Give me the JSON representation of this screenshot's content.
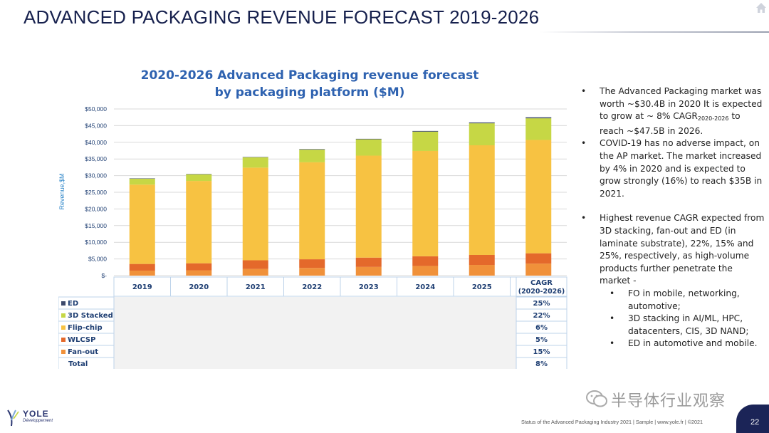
{
  "slide": {
    "title": "ADVANCED PACKAGING REVENUE FORECAST 2019-2026",
    "page_number": "22",
    "footer": "Status of the Advanced Packaging Industry 2021 | Sample | www.yole.fr | ©2021",
    "logo_name": "YOLE",
    "logo_sub": "Développement",
    "watermark": "半导体行业观察"
  },
  "bullets": {
    "b1_a": "The Advanced Packaging market was worth ~$30.4B in 2020 It is expected to  grow at ~ 8% CAGR",
    "b1_sub": "2020-2026",
    "b1_b": " to reach ~$47.5B in 2026.",
    "b2": "COVID-19 has no adverse impact, on the AP market. The market increased by 4% in 2020 and is expected to grow strongly (16%) to reach $35B in 2021.",
    "b3": "Highest revenue CAGR expected from 3D stacking,  fan-out and ED (in laminate substrate), 22%, 15% and 25%, respectively, as high-volume products further penetrate the market -",
    "s1": "FO in mobile, networking, automotive;",
    "s2": "3D stacking in AI/ML, HPC, datacenters, CIS, 3D NAND;",
    "s3": "ED in automotive and mobile."
  },
  "chart_data": {
    "type": "bar",
    "stacked": true,
    "title": "2020-2026 Advanced Packaging revenue forecast",
    "subtitle": "by packaging platform ($M)",
    "ylabel": "Revenue,$M",
    "xlabel": "",
    "ylim": [
      0,
      50000
    ],
    "yticks": [
      0,
      5000,
      10000,
      15000,
      20000,
      25000,
      30000,
      35000,
      40000,
      45000,
      50000
    ],
    "ytick_labels": [
      "$-",
      "$5,000",
      "$10,000",
      "$15,000",
      "$20,000",
      "$25,000",
      "$30,000",
      "$35,000",
      "$40,000",
      "$45,000",
      "$50,000"
    ],
    "grid": true,
    "categories": [
      "2019",
      "2020",
      "2021",
      "2022",
      "2023",
      "2024",
      "2025",
      "2026"
    ],
    "series": [
      {
        "name": "Fan-out",
        "color": "#f0913a",
        "values": [
          1500,
          1600,
          2000,
          2300,
          2600,
          2900,
          3200,
          3600
        ]
      },
      {
        "name": "WLCSP",
        "color": "#e4692b",
        "values": [
          2000,
          2100,
          2600,
          2600,
          2800,
          2900,
          3000,
          3100
        ]
      },
      {
        "name": "Flip-chip",
        "color": "#f7c242",
        "values": [
          23800,
          24700,
          27800,
          29100,
          30600,
          31600,
          32900,
          34000
        ]
      },
      {
        "name": "3D Stacked",
        "color": "#c6d745",
        "values": [
          1800,
          2000,
          3100,
          3800,
          4900,
          5800,
          6600,
          6500
        ]
      },
      {
        "name": "ED",
        "color": "#3d4a6b",
        "values": [
          100,
          100,
          100,
          150,
          150,
          200,
          250,
          300
        ]
      }
    ],
    "legend_rows": [
      "ED",
      "3D Stacked",
      "Flip-chip",
      "WLCSP",
      "Fan-out",
      "Total"
    ],
    "cagr_header": "CAGR",
    "cagr_subheader": "(2020-2026)",
    "cagr_values": [
      "25%",
      "22%",
      "6%",
      "5%",
      "15%",
      "8%"
    ]
  },
  "colors": {
    "title_navy": "#16204d",
    "chart_title_blue": "#2e62b0",
    "axis_text": "#1f3f73",
    "table_border": "#bdd3ea"
  }
}
